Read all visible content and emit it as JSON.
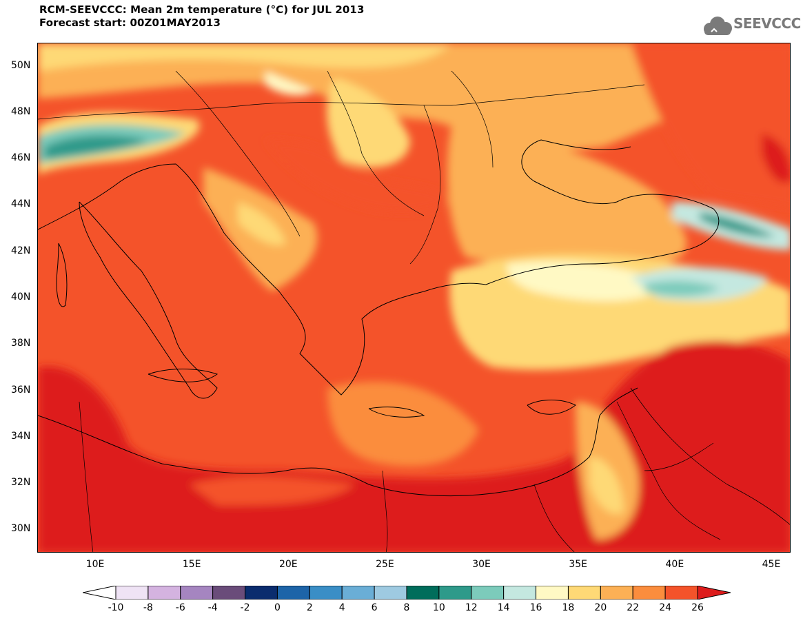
{
  "header": {
    "title": "RCM-SEEVCCC: Mean 2m temperature (°C) for JUL 2013",
    "subtitle": "Forecast start: 00Z01MAY2013"
  },
  "logo": {
    "text": "SEEVCCC",
    "icon": "cloud-icon"
  },
  "map": {
    "lon_range": [
      7,
      46
    ],
    "lat_range": [
      29,
      51
    ],
    "lat_ticks": [
      {
        "value": 30,
        "label": "30N"
      },
      {
        "value": 32,
        "label": "32N"
      },
      {
        "value": 34,
        "label": "34N"
      },
      {
        "value": 36,
        "label": "36N"
      },
      {
        "value": 38,
        "label": "38N"
      },
      {
        "value": 40,
        "label": "40N"
      },
      {
        "value": 42,
        "label": "42N"
      },
      {
        "value": 44,
        "label": "44N"
      },
      {
        "value": 46,
        "label": "46N"
      },
      {
        "value": 48,
        "label": "48N"
      },
      {
        "value": 50,
        "label": "50N"
      }
    ],
    "lon_ticks": [
      {
        "value": 10,
        "label": "10E"
      },
      {
        "value": 15,
        "label": "15E"
      },
      {
        "value": 20,
        "label": "20E"
      },
      {
        "value": 25,
        "label": "25E"
      },
      {
        "value": 30,
        "label": "30E"
      },
      {
        "value": 35,
        "label": "35E"
      },
      {
        "value": 40,
        "label": "40E"
      },
      {
        "value": 45,
        "label": "45E"
      }
    ]
  },
  "colorbar": {
    "labels": [
      "-10",
      "-8",
      "-6",
      "-4",
      "-2",
      "0",
      "2",
      "4",
      "6",
      "8",
      "10",
      "12",
      "14",
      "16",
      "18",
      "20",
      "22",
      "24",
      "26"
    ],
    "colors": [
      "#ffffff",
      "#efe3f5",
      "#d4b3e0",
      "#a585c0",
      "#6a4c7a",
      "#0a2c6e",
      "#1d64a8",
      "#3a8ec6",
      "#6aaed6",
      "#9ecae1",
      "#006d5b",
      "#2e9a8a",
      "#7ccbbb",
      "#c4e8e0",
      "#fff9c4",
      "#fed976",
      "#fcb055",
      "#fb8d3d",
      "#f4532a",
      "#dd1c1c"
    ],
    "under_color": "#ffffff",
    "over_color": "#dd1c1c"
  }
}
